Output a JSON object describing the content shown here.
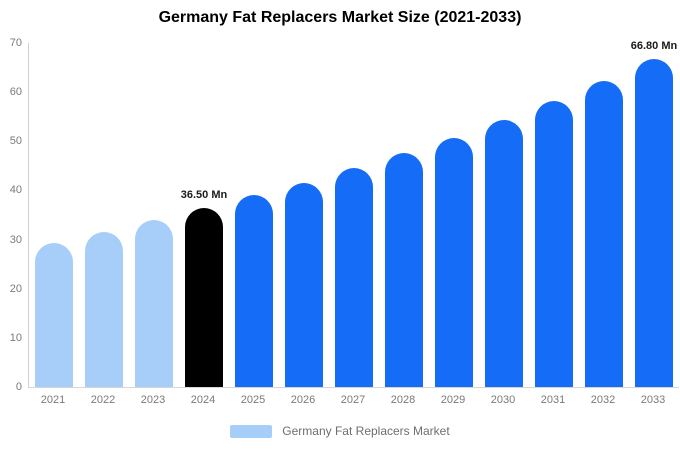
{
  "title": "Germany Fat Replacers Market Size (2021-2033)",
  "legend": {
    "label": "Germany Fat Replacers Market",
    "swatch_color": "#A6CEF8"
  },
  "colors": {
    "historical_bar": "#A6CEF8",
    "base_year_bar": "#000000",
    "forecast_bar": "#156CF7",
    "axis_line": "#cfcfcf",
    "tick_text": "#7a7a7a",
    "title_text": "#000000",
    "annotation_text": "#1a1a1a"
  },
  "chart_data": {
    "type": "bar",
    "title": "Germany Fat Replacers Market Size (2021-2033)",
    "xlabel": "",
    "ylabel": "",
    "categories": [
      "2021",
      "2022",
      "2023",
      "2024",
      "2025",
      "2026",
      "2027",
      "2028",
      "2029",
      "2030",
      "2031",
      "2032",
      "2033"
    ],
    "values": [
      29.4,
      31.6,
      33.9,
      36.5,
      39.0,
      41.6,
      44.5,
      47.6,
      50.7,
      54.3,
      58.2,
      62.2,
      66.8
    ],
    "bar_colors": [
      "#A6CEF8",
      "#A6CEF8",
      "#A6CEF8",
      "#000000",
      "#156CF7",
      "#156CF7",
      "#156CF7",
      "#156CF7",
      "#156CF7",
      "#156CF7",
      "#156CF7",
      "#156CF7",
      "#156CF7"
    ],
    "annotations": [
      {
        "category": "2024",
        "text": "36.50 Mn"
      },
      {
        "category": "2033",
        "text": "66.80 Mn"
      }
    ],
    "ylim": [
      0,
      70
    ],
    "yticks": [
      0,
      10,
      20,
      30,
      40,
      50,
      60,
      70
    ],
    "grid": false,
    "legend_entries": [
      "Germany Fat Replacers Market"
    ],
    "legend_position": "bottom",
    "unit": "Mn"
  }
}
